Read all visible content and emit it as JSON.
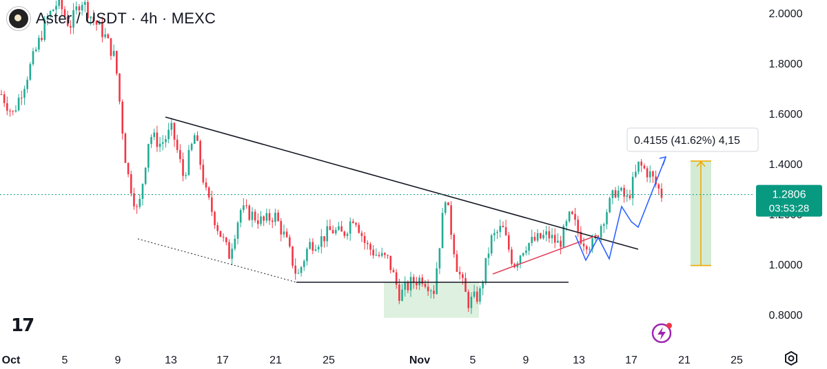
{
  "header": {
    "symbol": "Aster / USDT · 4h · MEXC"
  },
  "colors": {
    "up": "#22ab94",
    "down": "#f23645",
    "last_price_label": "#089981",
    "measure": "#f0a800",
    "trendline": "#131722",
    "support_rising": "#e0405a",
    "projection": "#2962ff",
    "zone": "#c8e6c9"
  },
  "chart_data": {
    "type": "candlestick",
    "title": "Aster / USDT · 4h · MEXC",
    "y_axis": {
      "ticks": [
        "2.0000",
        "1.8000",
        "1.6000",
        "1.4000",
        "1.2000",
        "1.0000",
        "0.8000"
      ],
      "range": [
        0.74,
        2.05
      ]
    },
    "x_axis": {
      "ticks": [
        "Oct",
        "5",
        "9",
        "13",
        "17",
        "21",
        "25",
        "Nov",
        "5",
        "9",
        "13",
        "17",
        "21",
        "25"
      ],
      "bold_ticks": [
        "Oct",
        "Nov"
      ]
    },
    "last_price": {
      "value": "1.2806",
      "countdown": "03:53:28",
      "level": 1.2806
    },
    "measure_label": "0.4155 (41.62%) 4,15",
    "measure_range": [
      0.998,
      1.414
    ],
    "series_close_path": [
      1.68,
      1.6,
      1.72,
      1.85,
      1.98,
      2.05,
      1.95,
      2.06,
      1.98,
      1.92,
      1.82,
      1.38,
      1.2,
      1.52,
      1.48,
      1.54,
      1.35,
      1.52,
      1.28,
      1.15,
      1.04,
      1.22,
      1.2,
      1.17,
      1.2,
      1.1,
      0.95,
      1.08,
      1.1,
      1.14,
      1.12,
      1.2,
      1.08,
      1.04,
      1.02,
      0.88,
      0.93,
      0.95,
      0.9,
      1.28,
      1.0,
      0.85,
      0.88,
      1.1,
      1.15,
      1.0,
      1.08,
      1.1,
      1.12,
      1.08,
      1.2,
      1.1,
      1.08,
      1.2,
      1.3,
      1.26,
      1.4,
      1.36,
      1.28
    ],
    "annotations": [
      "descending trendline",
      "lower dotted trendline",
      "horizontal support near 0.93",
      "rising support",
      "projected path up",
      "green accumulation zone",
      "measure tool"
    ]
  }
}
